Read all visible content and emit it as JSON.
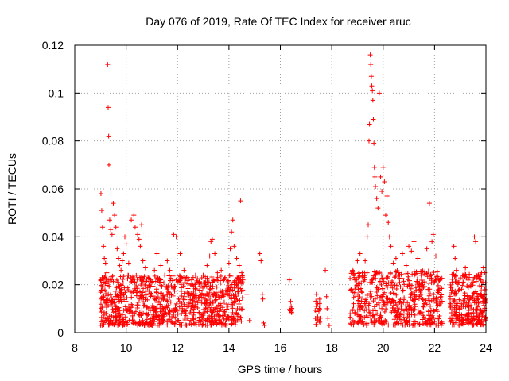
{
  "chart_data": {
    "type": "scatter",
    "title": "Day 076 of 2019, Rate Of TEC Index for receiver aruc",
    "xlabel": "GPS time / hours",
    "ylabel": "ROTI / TECUs",
    "xlim": [
      8,
      24
    ],
    "ylim": [
      0,
      0.12
    ],
    "x_ticks": [
      8,
      10,
      12,
      14,
      16,
      18,
      20,
      22,
      24
    ],
    "x_tick_labels": [
      "8",
      "10",
      "12",
      "14",
      "16",
      "18",
      "20",
      "22",
      "24"
    ],
    "y_ticks": [
      0,
      0.02,
      0.04,
      0.06,
      0.08,
      0.1,
      0.12
    ],
    "y_tick_labels": [
      "0",
      "0.02",
      "0.04",
      "0.06",
      "0.08",
      "0.1",
      "0.12"
    ],
    "grid": true,
    "marker": "+",
    "color": "#ff0000",
    "series": [
      {
        "name": "ROTI",
        "points": [
          [
            9.02,
            0.058
          ],
          [
            9.05,
            0.051
          ],
          [
            9.08,
            0.044
          ],
          [
            9.12,
            0.036
          ],
          [
            9.15,
            0.031
          ],
          [
            9.2,
            0.029
          ],
          [
            9.25,
            0.025
          ],
          [
            9.28,
            0.112
          ],
          [
            9.3,
            0.094
          ],
          [
            9.32,
            0.082
          ],
          [
            9.33,
            0.07
          ],
          [
            9.36,
            0.047
          ],
          [
            9.4,
            0.043
          ],
          [
            9.45,
            0.041
          ],
          [
            9.5,
            0.054
          ],
          [
            9.55,
            0.049
          ],
          [
            9.6,
            0.044
          ],
          [
            9.65,
            0.035
          ],
          [
            9.7,
            0.031
          ],
          [
            9.75,
            0.028
          ],
          [
            9.8,
            0.026
          ],
          [
            9.85,
            0.03
          ],
          [
            9.9,
            0.033
          ],
          [
            9.95,
            0.04
          ],
          [
            10.0,
            0.037
          ],
          [
            10.1,
            0.029
          ],
          [
            10.2,
            0.047
          ],
          [
            10.3,
            0.049
          ],
          [
            10.35,
            0.044
          ],
          [
            10.45,
            0.041
          ],
          [
            10.5,
            0.039
          ],
          [
            10.55,
            0.036
          ],
          [
            10.6,
            0.045
          ],
          [
            10.65,
            0.03
          ],
          [
            10.75,
            0.027
          ],
          [
            10.85,
            0.023
          ],
          [
            11.0,
            0.021
          ],
          [
            11.1,
            0.026
          ],
          [
            11.2,
            0.033
          ],
          [
            11.35,
            0.028
          ],
          [
            11.5,
            0.024
          ],
          [
            11.6,
            0.03
          ],
          [
            11.7,
            0.026
          ],
          [
            11.85,
            0.041
          ],
          [
            11.95,
            0.04
          ],
          [
            12.1,
            0.033
          ],
          [
            12.25,
            0.026
          ],
          [
            12.4,
            0.023
          ],
          [
            12.55,
            0.022
          ],
          [
            12.7,
            0.024
          ],
          [
            12.85,
            0.021
          ],
          [
            13.0,
            0.024
          ],
          [
            13.15,
            0.028
          ],
          [
            13.25,
            0.032
          ],
          [
            13.3,
            0.038
          ],
          [
            13.35,
            0.039
          ],
          [
            13.45,
            0.033
          ],
          [
            13.55,
            0.025
          ],
          [
            13.7,
            0.026
          ],
          [
            13.85,
            0.023
          ],
          [
            14.0,
            0.029
          ],
          [
            14.05,
            0.035
          ],
          [
            14.1,
            0.042
          ],
          [
            14.15,
            0.047
          ],
          [
            14.2,
            0.036
          ],
          [
            14.3,
            0.031
          ],
          [
            14.4,
            0.028
          ],
          [
            14.45,
            0.055
          ],
          [
            14.5,
            0.025
          ],
          [
            14.55,
            0.022
          ],
          [
            14.7,
            0.016
          ],
          [
            14.8,
            0.005
          ],
          [
            15.2,
            0.033
          ],
          [
            15.25,
            0.03
          ],
          [
            15.3,
            0.016
          ],
          [
            15.32,
            0.014
          ],
          [
            15.35,
            0.004
          ],
          [
            15.38,
            0.003
          ],
          [
            16.35,
            0.022
          ],
          [
            16.4,
            0.013
          ],
          [
            16.42,
            0.011
          ],
          [
            16.45,
            0.01
          ],
          [
            17.4,
            0.016
          ],
          [
            17.45,
            0.012
          ],
          [
            17.5,
            0.009
          ],
          [
            17.55,
            0.006
          ],
          [
            17.75,
            0.026
          ],
          [
            17.8,
            0.015
          ],
          [
            17.82,
            0.01
          ],
          [
            17.85,
            0.006
          ],
          [
            17.9,
            0.003
          ],
          [
            18.8,
            0.026
          ],
          [
            18.9,
            0.022
          ],
          [
            19.0,
            0.03
          ],
          [
            19.1,
            0.033
          ],
          [
            19.2,
            0.024
          ],
          [
            19.3,
            0.03
          ],
          [
            19.38,
            0.04
          ],
          [
            19.42,
            0.045
          ],
          [
            19.45,
            0.08
          ],
          [
            19.47,
            0.087
          ],
          [
            19.5,
            0.116
          ],
          [
            19.52,
            0.112
          ],
          [
            19.54,
            0.107
          ],
          [
            19.56,
            0.103
          ],
          [
            19.58,
            0.101
          ],
          [
            19.6,
            0.097
          ],
          [
            19.62,
            0.089
          ],
          [
            19.64,
            0.079
          ],
          [
            19.66,
            0.069
          ],
          [
            19.68,
            0.065
          ],
          [
            19.7,
            0.061
          ],
          [
            19.75,
            0.056
          ],
          [
            19.8,
            0.052
          ],
          [
            19.85,
            0.1
          ],
          [
            19.9,
            0.065
          ],
          [
            19.95,
            0.059
          ],
          [
            20.0,
            0.069
          ],
          [
            20.05,
            0.063
          ],
          [
            20.1,
            0.049
          ],
          [
            20.15,
            0.057
          ],
          [
            20.2,
            0.046
          ],
          [
            20.25,
            0.04
          ],
          [
            20.3,
            0.036
          ],
          [
            20.4,
            0.029
          ],
          [
            20.5,
            0.031
          ],
          [
            20.6,
            0.025
          ],
          [
            20.75,
            0.033
          ],
          [
            20.9,
            0.028
          ],
          [
            21.0,
            0.036
          ],
          [
            21.1,
            0.034
          ],
          [
            21.2,
            0.038
          ],
          [
            21.35,
            0.031
          ],
          [
            21.5,
            0.024
          ],
          [
            21.7,
            0.035
          ],
          [
            21.8,
            0.054
          ],
          [
            21.9,
            0.038
          ],
          [
            21.95,
            0.041
          ],
          [
            22.05,
            0.032
          ],
          [
            22.1,
            0.024
          ],
          [
            22.25,
            0.015
          ],
          [
            22.75,
            0.036
          ],
          [
            22.8,
            0.031
          ],
          [
            22.85,
            0.026
          ],
          [
            22.95,
            0.021
          ],
          [
            23.1,
            0.024
          ],
          [
            23.2,
            0.027
          ],
          [
            23.35,
            0.023
          ],
          [
            23.5,
            0.021
          ],
          [
            23.55,
            0.04
          ],
          [
            23.6,
            0.038
          ],
          [
            23.7,
            0.024
          ],
          [
            23.8,
            0.022
          ],
          [
            23.9,
            0.027
          ],
          [
            23.95,
            0.025
          ]
        ]
      }
    ],
    "bulk_clusters": [
      {
        "x_range": [
          9.0,
          14.55
        ],
        "y_range": [
          0.003,
          0.024
        ],
        "count": 900
      },
      {
        "x_range": [
          18.7,
          22.3
        ],
        "y_range": [
          0.003,
          0.026
        ],
        "count": 520
      },
      {
        "x_range": [
          22.6,
          24.0
        ],
        "y_range": [
          0.003,
          0.025
        ],
        "count": 260
      },
      {
        "x_range": [
          17.35,
          17.55
        ],
        "y_range": [
          0.003,
          0.014
        ],
        "count": 16
      },
      {
        "x_range": [
          16.35,
          16.45
        ],
        "y_range": [
          0.008,
          0.013
        ],
        "count": 6
      }
    ]
  }
}
